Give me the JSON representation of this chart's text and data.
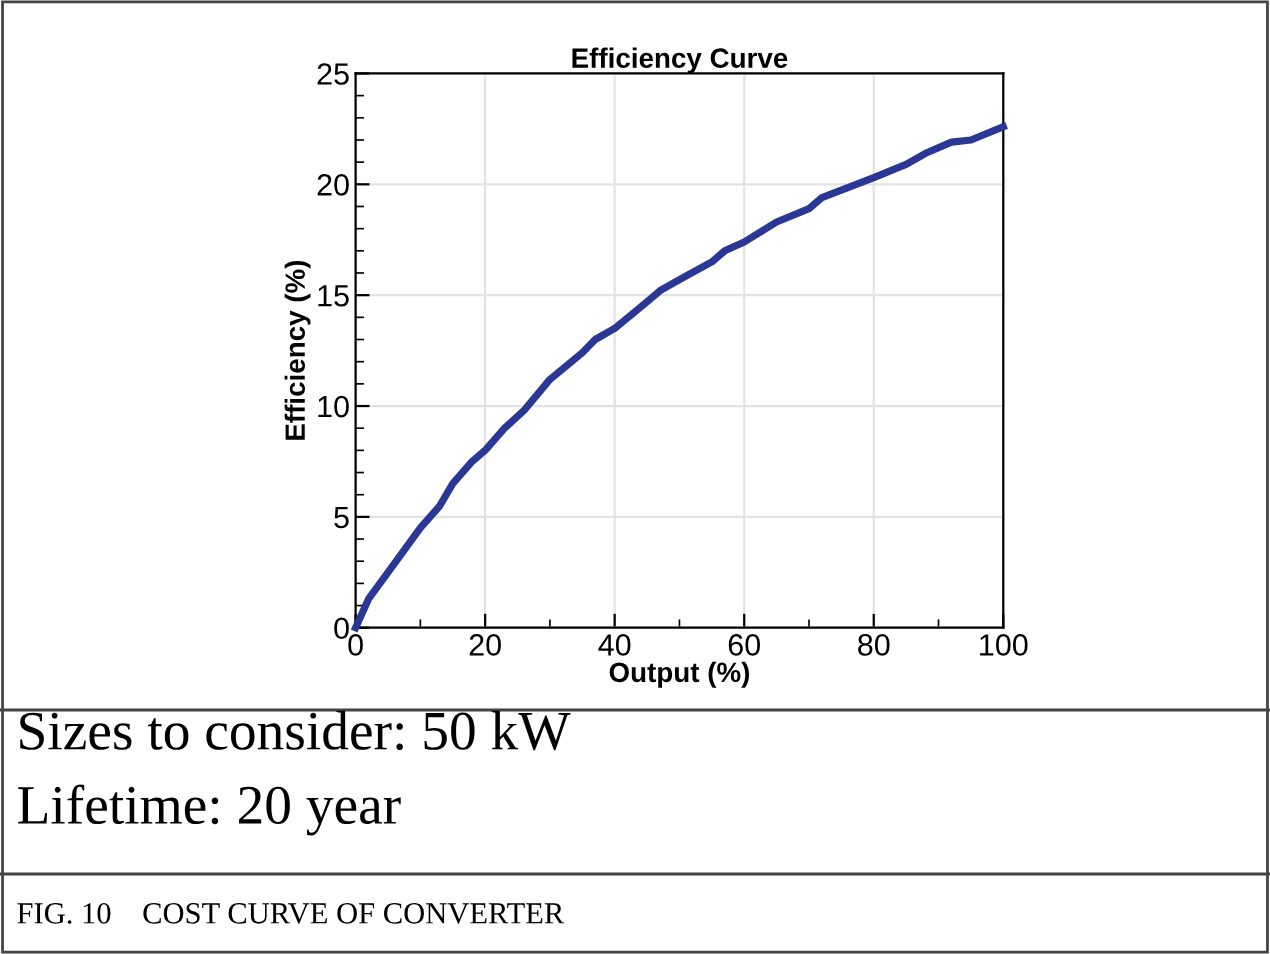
{
  "chart_data": {
    "type": "line",
    "title": "Efficiency Curve",
    "xlabel": "Output (%)",
    "ylabel": "Efficiency (%)",
    "xlim": [
      0,
      100
    ],
    "xticks": [
      0,
      20,
      40,
      60,
      80,
      100
    ],
    "ylim": [
      0,
      25
    ],
    "yticks": [
      0,
      5,
      10,
      15,
      20,
      25
    ],
    "grid": true,
    "marker": "none",
    "line_style": "solid",
    "series": [
      {
        "color": "#2b3795",
        "x": [
          0,
          2,
          5,
          10,
          13,
          15,
          18,
          20,
          23,
          26,
          30,
          35,
          37,
          40,
          45,
          47,
          50,
          55,
          57,
          60,
          65,
          70,
          72,
          80,
          85,
          88,
          92,
          95,
          100
        ],
        "values": [
          0,
          1.3,
          2.5,
          4.5,
          5.5,
          6.5,
          7.5,
          8,
          9,
          9.8,
          11.2,
          12.4,
          13,
          13.5,
          14.7,
          15.2,
          15.7,
          16.5,
          17,
          17.4,
          18.3,
          18.9,
          19.4,
          20.3,
          20.9,
          21.4,
          21.9,
          22.0,
          22.6
        ]
      }
    ],
    "annotations": [
      "Sizes to consider: 50 kW",
      "Lifetime: 20 year",
      "FIG. 10    COST CURVE OF CONVERTER"
    ]
  }
}
